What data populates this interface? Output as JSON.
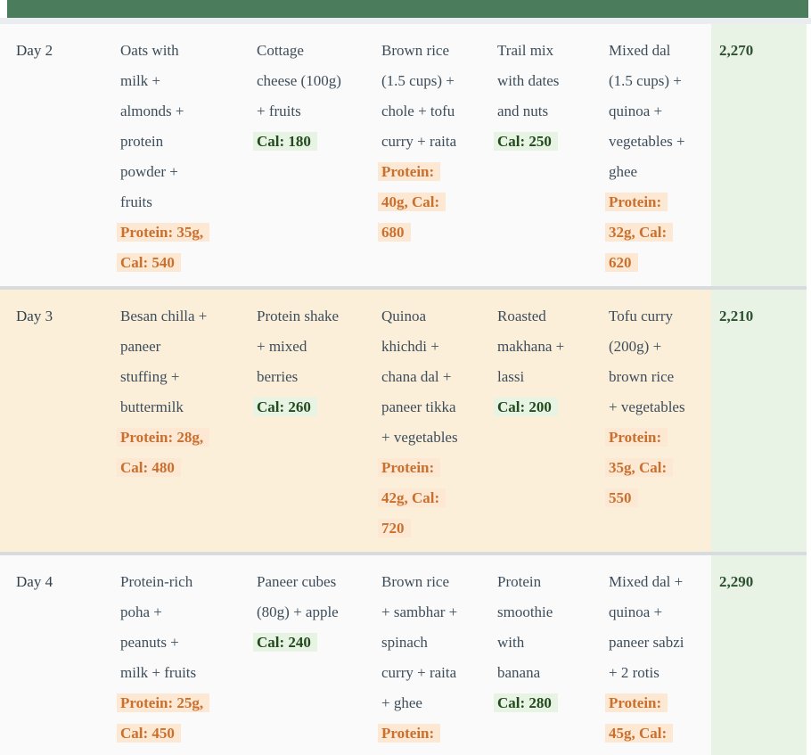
{
  "colors": {
    "header_green": "#4b7c5b",
    "row_plain_bg": "#fafafa",
    "row_cream_bg": "#fcefd9",
    "total_column_bg": "#e8f2e5",
    "body_text": "#3d4d5b",
    "protein_highlight_text": "#c9702f",
    "protein_highlight_bg": "#fde8d3",
    "calorie_highlight_text": "#234a1e",
    "calorie_highlight_bg": "#e7f3e3",
    "total_text": "#2d5232",
    "divider": "#d9dcde"
  },
  "table": {
    "rows": [
      {
        "day": "Day 2",
        "total": "2,270",
        "cells": [
          {
            "text": "Oats with\nmilk +\nalmonds +\nprotein\npowder +\nfruits",
            "highlight": "Protein: 35g,\nCal: 540",
            "highlight_type": "protein"
          },
          {
            "text": "Cottage\ncheese (100g)\n+ fruits",
            "highlight": "Cal: 180",
            "highlight_type": "cal"
          },
          {
            "text": "Brown rice\n(1.5 cups) +\nchole + tofu\ncurry + raita",
            "highlight": "Protein:\n40g, Cal:\n680",
            "highlight_type": "protein"
          },
          {
            "text": "Trail mix\nwith dates\nand nuts",
            "highlight": "Cal: 250",
            "highlight_type": "cal"
          },
          {
            "text": "Mixed dal\n(1.5 cups) +\nquinoa +\nvegetables +\nghee",
            "highlight": "Protein:\n32g, Cal:\n620",
            "highlight_type": "protein"
          }
        ]
      },
      {
        "day": "Day 3",
        "total": "2,210",
        "cells": [
          {
            "text": "Besan chilla +\npaneer\nstuffing +\nbuttermilk",
            "highlight": "Protein: 28g,\nCal: 480",
            "highlight_type": "protein"
          },
          {
            "text": "Protein shake\n+ mixed\nberries",
            "highlight": "Cal: 260",
            "highlight_type": "cal"
          },
          {
            "text": "Quinoa\nkhichdi +\nchana dal +\npaneer tikka\n+ vegetables",
            "highlight": "Protein:\n42g, Cal:\n720",
            "highlight_type": "protein"
          },
          {
            "text": "Roasted\nmakhana +\nlassi",
            "highlight": "Cal: 200",
            "highlight_type": "cal"
          },
          {
            "text": "Tofu curry\n(200g) +\nbrown rice\n+ vegetables",
            "highlight": "Protein:\n35g, Cal:\n550",
            "highlight_type": "protein"
          }
        ]
      },
      {
        "day": "Day 4",
        "total": "2,290",
        "cells": [
          {
            "text": "Protein-rich\npoha +\npeanuts +\nmilk + fruits",
            "highlight": "Protein: 25g,\nCal: 450",
            "highlight_type": "protein"
          },
          {
            "text": "Paneer cubes\n(80g) + apple",
            "highlight": "Cal: 240",
            "highlight_type": "cal"
          },
          {
            "text": "Brown rice\n+ sambhar +\nspinach\ncurry + raita\n+ ghee",
            "highlight": "Protein:",
            "highlight_type": "protein"
          },
          {
            "text": "Protein\nsmoothie\nwith\nbanana",
            "highlight": "Cal: 280",
            "highlight_type": "cal"
          },
          {
            "text": "Mixed dal +\nquinoa +\npaneer sabzi\n+ 2 rotis",
            "highlight": "Protein:\n45g, Cal:",
            "highlight_type": "protein"
          }
        ]
      }
    ]
  }
}
